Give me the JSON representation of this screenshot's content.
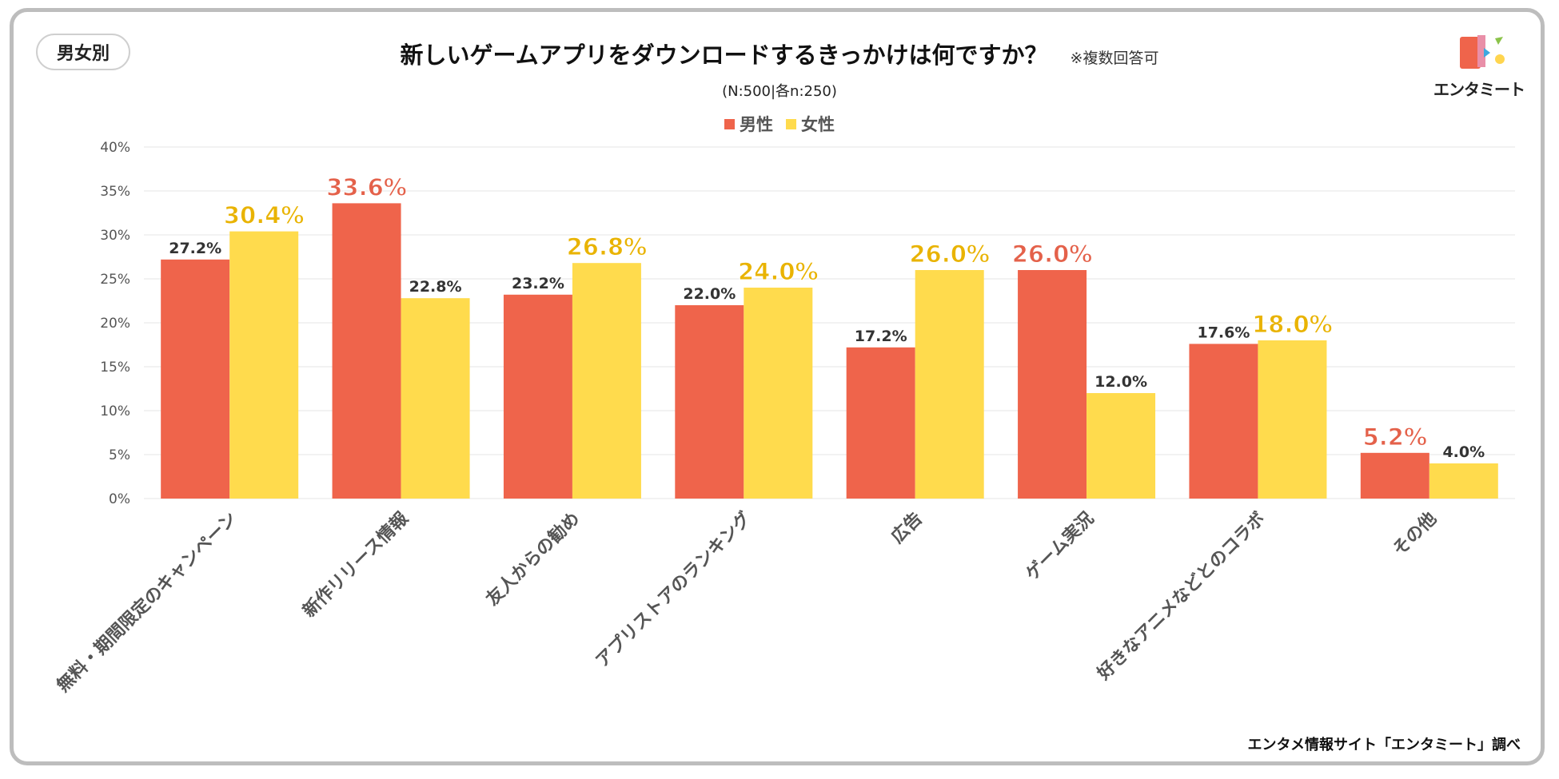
{
  "badge": "男女別",
  "title": "新しいゲームアプリをダウンロードするきっかけは何ですか？",
  "title_note": "※複数回答可",
  "subtitle": "(N:500|各n:250)",
  "logo_text": "エンタミート",
  "source": "エンタメ情報サイト「エンタミート」調べ",
  "colors": {
    "male": "#EF644B",
    "female": "#FFDB4D",
    "male_label_highlight": "#E4614A",
    "female_label_highlight": "#E9B300",
    "normal_label": "#333333",
    "grid": "#e6e6e6",
    "axis_text": "#555555"
  },
  "chart_data": {
    "type": "bar",
    "title": "新しいゲームアプリをダウンロードするきっかけは何ですか？",
    "categories": [
      "無料・期間限定のキャンペーン",
      "新作リリース情報",
      "友人からの勧め",
      "アプリストアのランキング",
      "広告",
      "ゲーム実況",
      "好きなアニメなどとのコラボ",
      "その他"
    ],
    "series": [
      {
        "name": "男性",
        "values": [
          27.2,
          33.6,
          23.2,
          22.0,
          17.2,
          26.0,
          17.6,
          5.2
        ]
      },
      {
        "name": "女性",
        "values": [
          30.4,
          22.8,
          26.8,
          24.0,
          26.0,
          12.0,
          18.0,
          4.0
        ]
      }
    ],
    "value_labels": [
      [
        "27.2%",
        "33.6%",
        "23.2%",
        "22.0%",
        "17.2%",
        "26.0%",
        "17.6%",
        "5.2%"
      ],
      [
        "30.4%",
        "22.8%",
        "26.8%",
        "24.0%",
        "26.0%",
        "12.0%",
        "18.0%",
        "4.0%"
      ]
    ],
    "highlight_higher": true,
    "ylim": [
      0,
      40
    ],
    "yticks": [
      0,
      5,
      10,
      15,
      20,
      25,
      30,
      35,
      40
    ],
    "ytick_labels": [
      "0%",
      "5%",
      "10%",
      "15%",
      "20%",
      "25%",
      "30%",
      "35%",
      "40%"
    ],
    "grid": true,
    "legend": "top-center",
    "xlabel": "",
    "ylabel": ""
  }
}
